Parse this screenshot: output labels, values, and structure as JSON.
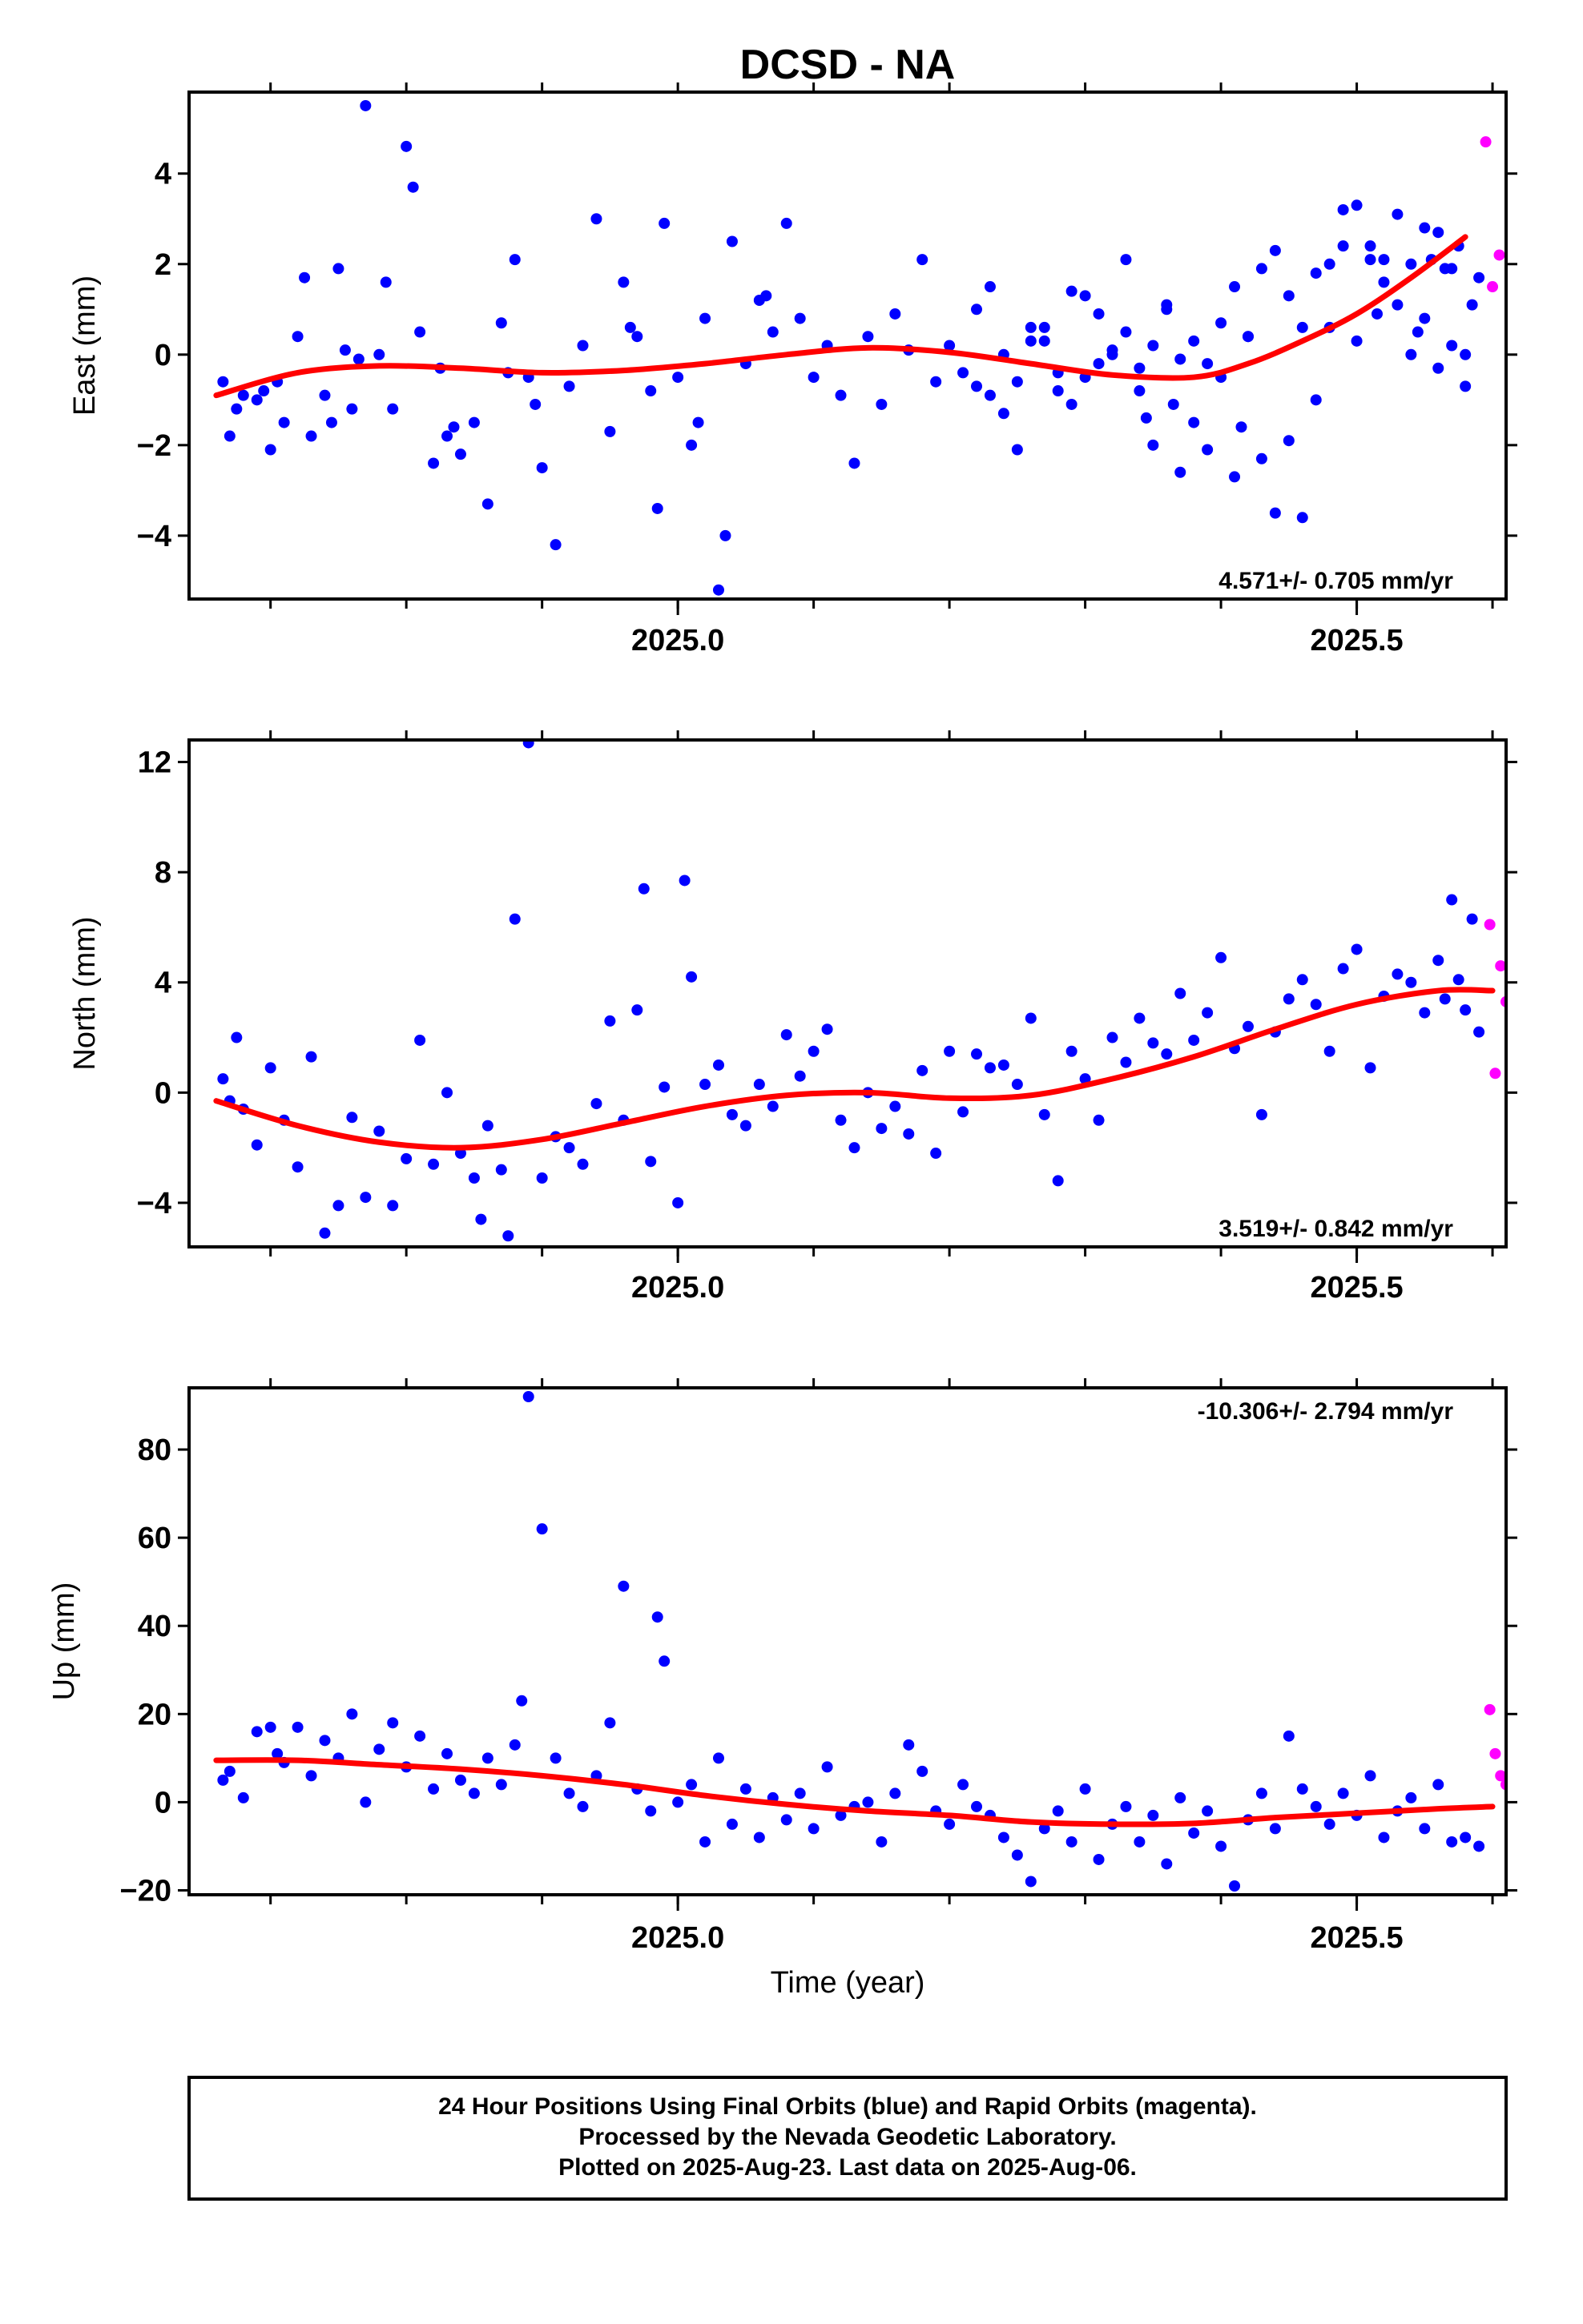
{
  "title": "DCSD - NA",
  "xlabel": "Time (year)",
  "colors": {
    "final": "#0000ff",
    "rapid": "#ff00ff",
    "fit": "#ff0000",
    "frame": "#000000"
  },
  "footer": {
    "line1": "24 Hour Positions Using Final Orbits (blue) and Rapid Orbits (magenta).",
    "line2": "Processed by the Nevada Geodetic Laboratory.",
    "line3": "Plotted on 2025-Aug-23. Last data on 2025-Aug-06."
  },
  "chart_data": [
    {
      "type": "scatter",
      "ylabel": "East (mm)",
      "rate": "4.571+/- 0.705 mm/yr",
      "xlim": [
        2024.64,
        2025.61
      ],
      "ylim": [
        -5.4,
        5.8
      ],
      "yticks": [
        -4,
        -2,
        0,
        2,
        4
      ],
      "ytick_labels": [
        "−4",
        "−2",
        "0",
        "2",
        "4"
      ],
      "xticks": [
        2025.0,
        2025.5
      ],
      "xtick_labels": [
        "2025.0",
        "2025.5"
      ],
      "xminor": [
        2024.7,
        2024.8,
        2024.9,
        2025.0,
        2025.1,
        2025.2,
        2025.3,
        2025.4,
        2025.5,
        2025.6
      ],
      "fit": {
        "x": [
          2024.66,
          2024.72,
          2024.78,
          2024.84,
          2024.9,
          2024.96,
          2025.02,
          2025.08,
          2025.14,
          2025.2,
          2025.26,
          2025.32,
          2025.38,
          2025.42,
          2025.46,
          2025.5,
          2025.54,
          2025.58
        ],
        "y": [
          -0.9,
          -0.4,
          -0.25,
          -0.3,
          -0.4,
          -0.35,
          -0.2,
          0.0,
          0.15,
          0.05,
          -0.2,
          -0.45,
          -0.5,
          -0.2,
          0.3,
          0.9,
          1.7,
          2.6
        ]
      },
      "final_points": {
        "x": [
          2024.665,
          2024.67,
          2024.675,
          2024.68,
          2024.69,
          2024.695,
          2024.7,
          2024.705,
          2024.71,
          2024.72,
          2024.725,
          2024.73,
          2024.74,
          2024.745,
          2024.75,
          2024.755,
          2024.76,
          2024.765,
          2024.77,
          2024.78,
          2024.785,
          2024.79,
          2024.8,
          2024.805,
          2024.81,
          2024.82,
          2024.825,
          2024.83,
          2024.835,
          2024.84,
          2024.85,
          2024.86,
          2024.87,
          2024.875,
          2024.88,
          2024.89,
          2024.895,
          2024.9,
          2024.91,
          2024.92,
          2024.93,
          2024.94,
          2024.95,
          2024.96,
          2024.965,
          2024.97,
          2024.98,
          2024.985,
          2024.99,
          2025.0,
          2025.01,
          2025.015,
          2025.02,
          2025.03,
          2025.035,
          2025.04,
          2025.05,
          2025.06,
          2025.065,
          2025.07,
          2025.08,
          2025.09,
          2025.1,
          2025.11,
          2025.12,
          2025.13,
          2025.14,
          2025.15,
          2025.16,
          2025.17,
          2025.18,
          2025.19,
          2025.2,
          2025.21,
          2025.22,
          2025.23,
          2025.24,
          2025.25,
          2025.26,
          2025.27,
          2025.28,
          2025.29,
          2025.3,
          2025.31,
          2025.32,
          2025.33,
          2025.34,
          2025.345,
          2025.35,
          2025.36,
          2025.365,
          2025.37,
          2025.38,
          2025.39,
          2025.4,
          2025.41,
          2025.415,
          2025.42,
          2025.43,
          2025.44,
          2025.45,
          2025.46,
          2025.47,
          2025.48,
          2025.49,
          2025.5,
          2025.51,
          2025.52,
          2025.53,
          2025.54,
          2025.55,
          2025.56,
          2025.57,
          2025.58
        ],
        "y": [
          -0.6,
          -1.8,
          -1.2,
          -0.9,
          -1.0,
          -0.8,
          -2.1,
          -0.6,
          -1.5,
          0.4,
          1.7,
          -1.8,
          -0.9,
          -1.5,
          1.9,
          0.1,
          -1.2,
          -0.1,
          5.5,
          0.0,
          1.6,
          -1.2,
          4.6,
          3.7,
          0.5,
          -2.4,
          -0.3,
          -1.8,
          -1.6,
          -2.2,
          -1.5,
          -3.3,
          0.7,
          -0.4,
          2.1,
          -0.5,
          -1.1,
          -2.5,
          -4.2,
          -0.7,
          0.2,
          3.0,
          -1.7,
          1.6,
          0.6,
          0.4,
          -0.8,
          -3.4,
          2.9,
          -0.5,
          -2.0,
          -1.5,
          0.8,
          -5.2,
          -4.0,
          2.5,
          -0.2,
          1.2,
          1.3,
          0.5,
          2.9,
          0.8,
          -0.5,
          0.2,
          -0.9,
          -2.4,
          0.4,
          -1.1,
          0.9,
          0.1,
          2.1,
          -0.6,
          0.2,
          -0.4,
          1.0,
          1.5,
          0.0,
          -2.1,
          0.3,
          0.6,
          -0.8,
          1.4,
          -0.5,
          0.9,
          0.1,
          2.1,
          -0.3,
          -1.4,
          -2.0,
          1.1,
          -1.1,
          -2.6,
          -1.5,
          -2.1,
          -0.5,
          -2.7,
          -1.6,
          0.4,
          -2.3,
          -3.5,
          -1.9,
          -3.6,
          -1.0,
          0.6,
          3.2,
          0.3,
          2.4,
          2.1,
          1.1,
          0.0,
          2.8,
          -0.3,
          1.9,
          -0.7
        ],
        "y2": [
          -0.7,
          -0.9,
          -1.3,
          -0.6,
          0.6,
          0.3,
          -0.4,
          -1.1,
          1.3,
          -0.2,
          0.0,
          0.5,
          -0.8,
          0.2,
          1.0,
          -0.1,
          0.3,
          -0.2,
          0.7,
          1.5,
          0.4,
          1.9,
          2.3,
          1.3,
          0.6,
          1.8,
          2.0,
          2.4,
          3.3,
          2.1,
          0.9,
          1.6,
          3.1,
          2.0,
          0.5,
          0.8,
          2.1,
          2.7,
          1.9,
          0.2,
          2.4,
          0.0,
          1.1,
          1.7
        ]
      },
      "final_points_b_x": [
        2025.22,
        2025.23,
        2025.24,
        2025.25,
        2025.26,
        2025.27,
        2025.28,
        2025.29,
        2025.3,
        2025.31,
        2025.32,
        2025.33,
        2025.34,
        2025.35,
        2025.36,
        2025.37,
        2025.38,
        2025.39,
        2025.4,
        2025.41,
        2025.42,
        2025.43,
        2025.44,
        2025.45,
        2025.46,
        2025.47,
        2025.48,
        2025.49,
        2025.5,
        2025.51,
        2025.515,
        2025.52,
        2025.53,
        2025.54,
        2025.545,
        2025.55,
        2025.555,
        2025.56,
        2025.565,
        2025.57,
        2025.575,
        2025.58,
        2025.585,
        2025.59
      ],
      "rapid_points": {
        "x": [
          2025.595,
          2025.6,
          2025.605
        ],
        "y": [
          4.7,
          1.5,
          2.2
        ]
      }
    },
    {
      "type": "scatter",
      "ylabel": "North (mm)",
      "rate": "3.519+/- 0.842 mm/yr",
      "xlim": [
        2024.64,
        2025.61
      ],
      "ylim": [
        -5.6,
        12.8
      ],
      "yticks": [
        -4,
        0,
        4,
        8,
        12
      ],
      "ytick_labels": [
        "−4",
        "0",
        "4",
        "8",
        "12"
      ],
      "xticks": [
        2025.0,
        2025.5
      ],
      "xtick_labels": [
        "2025.0",
        "2025.5"
      ],
      "xminor": [
        2024.7,
        2024.8,
        2024.9,
        2025.0,
        2025.1,
        2025.2,
        2025.3,
        2025.4,
        2025.5,
        2025.6
      ],
      "fit": {
        "x": [
          2024.66,
          2024.72,
          2024.78,
          2024.84,
          2024.9,
          2024.96,
          2025.02,
          2025.08,
          2025.14,
          2025.2,
          2025.26,
          2025.32,
          2025.38,
          2025.44,
          2025.5,
          2025.56,
          2025.6
        ],
        "y": [
          -0.3,
          -1.2,
          -1.8,
          -2.0,
          -1.7,
          -1.1,
          -0.5,
          -0.1,
          0.0,
          -0.2,
          -0.1,
          0.5,
          1.3,
          2.3,
          3.2,
          3.7,
          3.7
        ]
      },
      "final_points": {
        "x": [
          2024.665,
          2024.67,
          2024.675,
          2024.68,
          2024.69,
          2024.7,
          2024.71,
          2024.72,
          2024.73,
          2024.74,
          2024.75,
          2024.76,
          2024.77,
          2024.78,
          2024.79,
          2024.8,
          2024.81,
          2024.82,
          2024.83,
          2024.84,
          2024.85,
          2024.855,
          2024.86,
          2024.87,
          2024.875,
          2024.88,
          2024.89,
          2024.9,
          2024.91,
          2024.92,
          2024.93,
          2024.94,
          2024.95,
          2024.96,
          2024.97,
          2024.975,
          2024.98,
          2024.99,
          2025.0,
          2025.005,
          2025.01,
          2025.02,
          2025.03,
          2025.04,
          2025.05,
          2025.06,
          2025.07,
          2025.08,
          2025.09,
          2025.1,
          2025.11,
          2025.12,
          2025.13,
          2025.14,
          2025.15,
          2025.16,
          2025.17,
          2025.18,
          2025.19,
          2025.2,
          2025.21,
          2025.22,
          2025.23,
          2025.24,
          2025.25,
          2025.26,
          2025.27,
          2025.28,
          2025.29,
          2025.3,
          2025.31,
          2025.32,
          2025.33,
          2025.34,
          2025.35,
          2025.36,
          2025.37,
          2025.38,
          2025.39,
          2025.4,
          2025.41,
          2025.42,
          2025.43,
          2025.44,
          2025.45,
          2025.46,
          2025.47,
          2025.48,
          2025.49,
          2025.5,
          2025.51,
          2025.52,
          2025.53,
          2025.54,
          2025.55,
          2025.56,
          2025.565,
          2025.57,
          2025.575,
          2025.58,
          2025.585,
          2025.59
        ],
        "y": [
          0.5,
          -0.3,
          2.0,
          -0.6,
          -1.9,
          0.9,
          -1.0,
          -2.7,
          1.3,
          -5.1,
          -4.1,
          -0.9,
          -3.8,
          -1.4,
          -4.1,
          -2.4,
          1.9,
          -2.6,
          0.0,
          -2.2,
          -3.1,
          -4.6,
          -1.2,
          -2.8,
          -5.2,
          6.3,
          12.7,
          -3.1,
          -1.6,
          -2.0,
          -2.6,
          -0.4,
          2.6,
          -1.0,
          3.0,
          7.4,
          -2.5,
          0.2,
          -4.0,
          7.7,
          4.2,
          0.3,
          1.0,
          -0.8,
          -1.2,
          0.3,
          -0.5,
          2.1,
          0.6,
          1.5,
          2.3,
          -1.0,
          -2.0,
          0.0,
          -1.3,
          -0.5,
          -1.5,
          0.8,
          -2.2,
          1.5,
          -0.7,
          1.4,
          0.9,
          1.0,
          0.3,
          2.7,
          -0.8,
          -3.2,
          1.5,
          0.5,
          -1.0,
          2.0,
          1.1,
          2.7,
          1.8,
          1.4,
          3.6,
          1.9,
          2.9,
          4.9,
          1.6,
          2.4,
          -0.8,
          2.2,
          3.4,
          4.1,
          3.2,
          1.5,
          4.5,
          5.2,
          0.9,
          3.5,
          4.3,
          4.0,
          2.9,
          4.8,
          3.4,
          7.0,
          4.1,
          3.0,
          6.3,
          2.2
        ],
        "y2": []
      },
      "rapid_points": {
        "x": [
          2025.598,
          2025.602,
          2025.606,
          2025.61
        ],
        "y": [
          6.1,
          0.7,
          4.6,
          3.3
        ]
      }
    },
    {
      "type": "scatter",
      "ylabel": "Up (mm)",
      "rate": "-10.306+/- 2.794 mm/yr",
      "xlim": [
        2024.64,
        2025.61
      ],
      "ylim": [
        -21.0,
        94.0
      ],
      "yticks": [
        -20,
        0,
        20,
        40,
        60,
        80
      ],
      "ytick_labels": [
        "−20",
        "0",
        "20",
        "40",
        "60",
        "80"
      ],
      "xticks": [
        2025.0,
        2025.5
      ],
      "xtick_labels": [
        "2025.0",
        "2025.5"
      ],
      "xminor": [
        2024.7,
        2024.8,
        2024.9,
        2025.0,
        2025.1,
        2025.2,
        2025.3,
        2025.4,
        2025.5,
        2025.6
      ],
      "fit": {
        "x": [
          2024.66,
          2024.72,
          2024.78,
          2024.84,
          2024.9,
          2024.96,
          2025.02,
          2025.08,
          2025.14,
          2025.2,
          2025.26,
          2025.32,
          2025.38,
          2025.44,
          2025.5,
          2025.56,
          2025.6
        ],
        "y": [
          9.5,
          9.5,
          8.5,
          7.5,
          6.0,
          4.0,
          1.5,
          -0.5,
          -2.0,
          -3.0,
          -4.5,
          -5.0,
          -4.8,
          -3.5,
          -2.5,
          -1.5,
          -1.0
        ]
      },
      "final_points": {
        "x": [
          2024.665,
          2024.67,
          2024.68,
          2024.69,
          2024.7,
          2024.705,
          2024.71,
          2024.72,
          2024.73,
          2024.74,
          2024.75,
          2024.76,
          2024.77,
          2024.78,
          2024.79,
          2024.8,
          2024.81,
          2024.82,
          2024.83,
          2024.84,
          2024.85,
          2024.86,
          2024.87,
          2024.88,
          2024.885,
          2024.89,
          2024.9,
          2024.91,
          2024.92,
          2024.93,
          2024.94,
          2024.95,
          2024.96,
          2024.97,
          2024.98,
          2024.985,
          2024.99,
          2025.0,
          2025.01,
          2025.02,
          2025.03,
          2025.04,
          2025.05,
          2025.06,
          2025.07,
          2025.08,
          2025.09,
          2025.1,
          2025.11,
          2025.12,
          2025.13,
          2025.14,
          2025.15,
          2025.16,
          2025.17,
          2025.18,
          2025.19,
          2025.2,
          2025.21,
          2025.22,
          2025.23,
          2025.24,
          2025.25,
          2025.26,
          2025.27,
          2025.28,
          2025.29,
          2025.3,
          2025.31,
          2025.32,
          2025.33,
          2025.34,
          2025.35,
          2025.36,
          2025.37,
          2025.38,
          2025.39,
          2025.4,
          2025.41,
          2025.42,
          2025.43,
          2025.44,
          2025.45,
          2025.46,
          2025.47,
          2025.48,
          2025.49,
          2025.5,
          2025.51,
          2025.52,
          2025.53,
          2025.54,
          2025.55,
          2025.56,
          2025.57,
          2025.58,
          2025.59
        ],
        "y": [
          5.0,
          7.0,
          1.0,
          16.0,
          17.0,
          11.0,
          9.0,
          17.0,
          6.0,
          14.0,
          10.0,
          20.0,
          0.0,
          12.0,
          18.0,
          8.0,
          15.0,
          3.0,
          11.0,
          5.0,
          2.0,
          10.0,
          4.0,
          13.0,
          23.0,
          92.0,
          62.0,
          10.0,
          2.0,
          -1.0,
          6.0,
          18.0,
          49.0,
          3.0,
          -2.0,
          42.0,
          32.0,
          0.0,
          4.0,
          -9.0,
          10.0,
          -5.0,
          3.0,
          -8.0,
          1.0,
          -4.0,
          2.0,
          -6.0,
          8.0,
          -3.0,
          -1.0,
          0.0,
          -9.0,
          2.0,
          13.0,
          7.0,
          -2.0,
          -5.0,
          4.0,
          -1.0,
          -3.0,
          -8.0,
          -12.0,
          -18.0,
          -6.0,
          -2.0,
          -9.0,
          3.0,
          -13.0,
          -5.0,
          -1.0,
          -9.0,
          -3.0,
          -14.0,
          1.0,
          -7.0,
          -2.0,
          -10.0,
          -19.0,
          -4.0,
          2.0,
          -6.0,
          15.0,
          3.0,
          -1.0,
          -5.0,
          2.0,
          -3.0,
          6.0,
          -8.0,
          -2.0,
          1.0,
          -6.0,
          4.0,
          -9.0,
          -8.0,
          -10.0
        ],
        "y2": []
      },
      "rapid_points": {
        "x": [
          2025.598,
          2025.602,
          2025.606,
          2025.61
        ],
        "y": [
          21.0,
          11.0,
          6.0,
          4.0
        ]
      }
    }
  ]
}
